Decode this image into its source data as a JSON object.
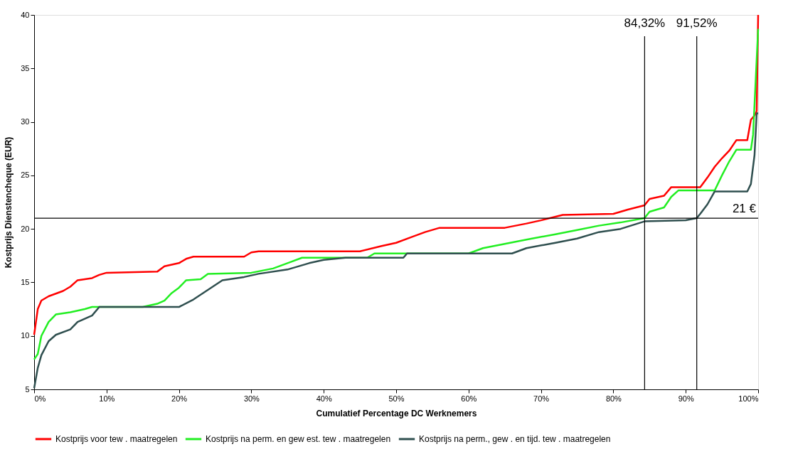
{
  "chart_data": {
    "type": "line",
    "xlabel": "Cumulatief Percentage DC Werknemers",
    "ylabel": "Kostprijs Dienstencheque (EUR)",
    "xlim": [
      0,
      100
    ],
    "xticks": [
      {
        "value": 0,
        "label": "0%"
      },
      {
        "value": 10,
        "label": "10%"
      },
      {
        "value": 20,
        "label": "20%"
      },
      {
        "value": 30,
        "label": "30%"
      },
      {
        "value": 40,
        "label": "40%"
      },
      {
        "value": 50,
        "label": "50%"
      },
      {
        "value": 60,
        "label": "60%"
      },
      {
        "value": 70,
        "label": "70%"
      },
      {
        "value": 80,
        "label": "80%"
      },
      {
        "value": 90,
        "label": "90%"
      },
      {
        "value": 100,
        "label": "100%"
      }
    ],
    "ylim": [
      5,
      40
    ],
    "yticks": [
      5,
      10,
      15,
      20,
      25,
      30,
      35,
      40
    ],
    "grid": false,
    "legend": "bottom",
    "line_style": "solid",
    "series": [
      {
        "name": "Kostprijs voor tew . maatregelen",
        "color": "#ff0000",
        "x": [
          0,
          0.5,
          1,
          2,
          4,
          5,
          6,
          8,
          9,
          10,
          17,
          18,
          20,
          21,
          22,
          29,
          30,
          31,
          45,
          48,
          50,
          52,
          54,
          56,
          65,
          68,
          70,
          73,
          80,
          82,
          84.3,
          85,
          87,
          88,
          92,
          93,
          94,
          95,
          96,
          97,
          98.5,
          99,
          99.5,
          99.8,
          100
        ],
        "values": [
          10.1,
          12.5,
          13.3,
          13.7,
          14.2,
          14.6,
          15.2,
          15.4,
          15.7,
          15.9,
          16.0,
          16.5,
          16.8,
          17.2,
          17.4,
          17.4,
          17.8,
          17.9,
          17.9,
          18.4,
          18.7,
          19.2,
          19.7,
          20.1,
          20.1,
          20.5,
          20.8,
          21.3,
          21.4,
          21.8,
          22.2,
          22.8,
          23.1,
          23.9,
          23.9,
          24.8,
          25.8,
          26.6,
          27.3,
          28.3,
          28.3,
          30.2,
          30.6,
          31.0,
          40.0
        ]
      },
      {
        "name": "Kostprijs na perm. en gew est. tew . maatregelen",
        "color": "#22ee22",
        "x": [
          0,
          0.5,
          1,
          2,
          3,
          5,
          7,
          8,
          15,
          17,
          18,
          19,
          20,
          21,
          23,
          24,
          30,
          33,
          35,
          37,
          46,
          47,
          60,
          62,
          65,
          68,
          72,
          75,
          78,
          81,
          84.3,
          85,
          87,
          88,
          89,
          94,
          95,
          96,
          97,
          99,
          99.3,
          100
        ],
        "values": [
          7.8,
          8.3,
          10.0,
          11.3,
          12.0,
          12.2,
          12.5,
          12.7,
          12.7,
          13.0,
          13.3,
          14.0,
          14.5,
          15.2,
          15.3,
          15.8,
          15.9,
          16.3,
          16.8,
          17.3,
          17.3,
          17.7,
          17.7,
          18.2,
          18.6,
          19.0,
          19.5,
          19.9,
          20.3,
          20.6,
          21.0,
          21.6,
          22.0,
          23.0,
          23.6,
          23.6,
          25.0,
          26.3,
          27.4,
          27.4,
          28.8,
          38.7
        ]
      },
      {
        "name": "Kostprijs na perm., gew . en tijd. tew . maatregelen",
        "color": "#2f4f4f",
        "x": [
          0,
          0.5,
          1,
          2,
          3,
          5,
          6,
          8,
          9,
          20,
          22,
          24,
          26,
          29,
          31,
          35,
          38,
          40,
          43,
          51,
          51.5,
          66,
          68,
          72,
          75,
          78,
          81,
          84.3,
          90,
          91.5,
          92,
          93,
          94,
          98.5,
          99,
          99.5,
          99.8,
          100
        ],
        "values": [
          5.1,
          7.0,
          8.2,
          9.5,
          10.1,
          10.6,
          11.3,
          11.9,
          12.7,
          12.7,
          13.4,
          14.3,
          15.2,
          15.5,
          15.8,
          16.2,
          16.8,
          17.1,
          17.3,
          17.3,
          17.7,
          17.7,
          18.2,
          18.7,
          19.1,
          19.7,
          20.0,
          20.7,
          20.8,
          21.0,
          21.4,
          22.3,
          23.5,
          23.5,
          24.2,
          26.9,
          30.8,
          30.8
        ]
      }
    ],
    "ref_lines": [
      {
        "axis": "x",
        "value": 84.32,
        "label": "84,32%",
        "color": "#000000"
      },
      {
        "axis": "x",
        "value": 91.52,
        "label": "91,52%",
        "color": "#000000"
      },
      {
        "axis": "y",
        "value": 21,
        "label": "21 €",
        "color": "#000000"
      }
    ]
  }
}
